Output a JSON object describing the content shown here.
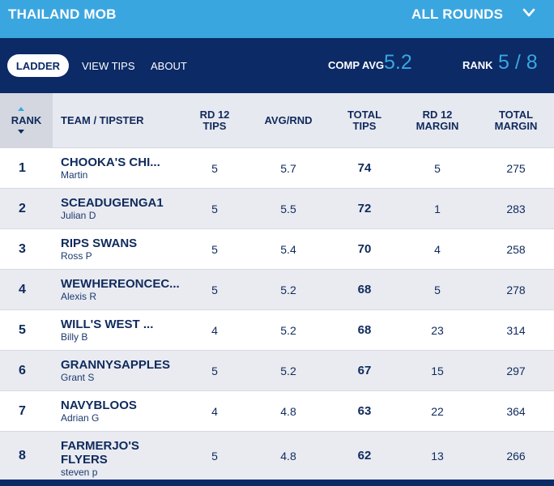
{
  "header": {
    "competition_name": "THAILAND MOB",
    "round_selector": "ALL ROUNDS",
    "round_selector_icon": "chevron-down-icon"
  },
  "nav": {
    "tabs": [
      {
        "label": "LADDER",
        "active": true
      },
      {
        "label": "VIEW TIPS",
        "active": false
      },
      {
        "label": "ABOUT",
        "active": false
      }
    ],
    "comp_avg_label": "COMP AVG",
    "comp_avg_value": "5.2",
    "rank_label": "RANK",
    "rank_value": "5 / 8"
  },
  "colors": {
    "topbar": "#3aa6e0",
    "navbar": "#0b2a66",
    "accent": "#3aa6e0"
  },
  "table": {
    "headers": {
      "rank": "RANK",
      "team": "TEAM / TIPSTER",
      "rd_tips_1": "RD 12",
      "rd_tips_2": "TIPS",
      "avg": "AVG/RND",
      "total_tips_1": "TOTAL",
      "total_tips_2": "TIPS",
      "rd_margin_1": "RD 12",
      "rd_margin_2": "MARGIN",
      "total_margin_1": "TOTAL",
      "total_margin_2": "MARGIN"
    },
    "rows": [
      {
        "rank": "1",
        "team": "CHOOKA'S CHI...",
        "tipster": "Martin",
        "rd_tips": "5",
        "avg": "5.7",
        "total_tips": "74",
        "rd_margin": "5",
        "total_margin": "275"
      },
      {
        "rank": "2",
        "team": "SCEADUGENGA1",
        "tipster": "Julian D",
        "rd_tips": "5",
        "avg": "5.5",
        "total_tips": "72",
        "rd_margin": "1",
        "total_margin": "283"
      },
      {
        "rank": "3",
        "team": "RIPS SWANS",
        "tipster": "Ross P",
        "rd_tips": "5",
        "avg": "5.4",
        "total_tips": "70",
        "rd_margin": "4",
        "total_margin": "258"
      },
      {
        "rank": "4",
        "team": "WEWHEREONCEC...",
        "tipster": "Alexis R",
        "rd_tips": "5",
        "avg": "5.2",
        "total_tips": "68",
        "rd_margin": "5",
        "total_margin": "278"
      },
      {
        "rank": "5",
        "team": "WILL'S WEST ...",
        "tipster": "Billy B",
        "rd_tips": "4",
        "avg": "5.2",
        "total_tips": "68",
        "rd_margin": "23",
        "total_margin": "314"
      },
      {
        "rank": "6",
        "team": "GRANNYSAPPLES",
        "tipster": "Grant S",
        "rd_tips": "5",
        "avg": "5.2",
        "total_tips": "67",
        "rd_margin": "15",
        "total_margin": "297"
      },
      {
        "rank": "7",
        "team": "NAVYBLOOS",
        "tipster": "Adrian G",
        "rd_tips": "4",
        "avg": "4.8",
        "total_tips": "63",
        "rd_margin": "22",
        "total_margin": "364"
      },
      {
        "rank": "8",
        "team": "FARMERJO'S FLYERS",
        "tipster": "steven p",
        "rd_tips": "5",
        "avg": "4.8",
        "total_tips": "62",
        "rd_margin": "13",
        "total_margin": "266"
      }
    ]
  }
}
